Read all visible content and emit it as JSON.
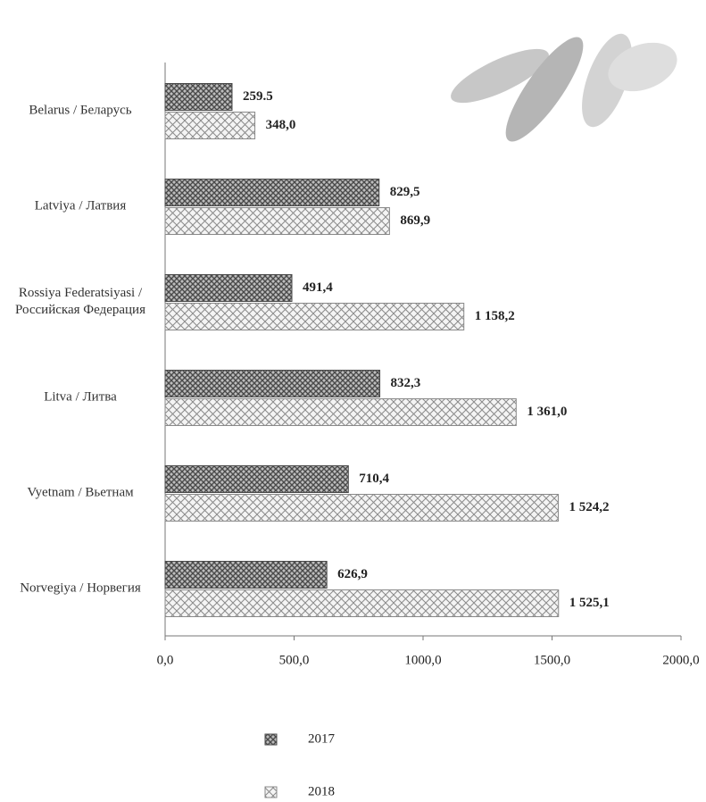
{
  "chart_data": {
    "type": "bar",
    "orientation": "horizontal",
    "categories": [
      "Belarus / Беларусь",
      "Latviya / Латвия",
      "Rossiya Federatsiyasi / Российская Федерация",
      "Litva / Литва",
      "Vyetnam / Вьетнам",
      "Norvegiya / Норвегия"
    ],
    "series": [
      {
        "name": "2017",
        "color": "#4a4a4a",
        "values": [
          259.5,
          829.5,
          491.4,
          832.3,
          710.4,
          626.9
        ],
        "value_labels": [
          "259.5",
          "829,5",
          "491,4",
          "832,3",
          "710,4",
          "626,9"
        ]
      },
      {
        "name": "2018",
        "color": "#8a8a8a",
        "values": [
          348.0,
          869.9,
          1158.2,
          1361.0,
          1524.2,
          1525.1
        ],
        "value_labels": [
          "348,0",
          "869,9",
          "1 158,2",
          "1 361,0",
          "1 524,2",
          "1 525,1"
        ]
      }
    ],
    "xlim": [
      0,
      2000
    ],
    "xticks": [
      {
        "value": 0,
        "label": "0,0"
      },
      {
        "value": 500,
        "label": "500,0"
      },
      {
        "value": 1000,
        "label": "1000,0"
      },
      {
        "value": 1500,
        "label": "1500,0"
      },
      {
        "value": 2000,
        "label": "2000,0"
      }
    ],
    "legend": "bottom"
  }
}
